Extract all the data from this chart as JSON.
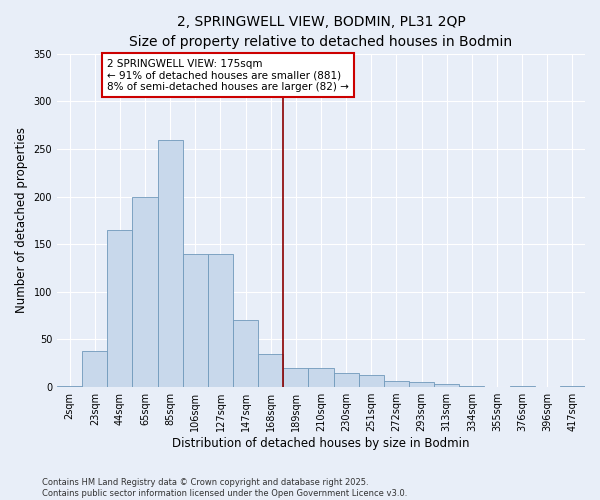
{
  "title": "2, SPRINGWELL VIEW, BODMIN, PL31 2QP",
  "subtitle": "Size of property relative to detached houses in Bodmin",
  "xlabel": "Distribution of detached houses by size in Bodmin",
  "ylabel": "Number of detached properties",
  "bar_labels": [
    "2sqm",
    "23sqm",
    "44sqm",
    "65sqm",
    "85sqm",
    "106sqm",
    "127sqm",
    "147sqm",
    "168sqm",
    "189sqm",
    "210sqm",
    "230sqm",
    "251sqm",
    "272sqm",
    "293sqm",
    "313sqm",
    "334sqm",
    "355sqm",
    "376sqm",
    "396sqm",
    "417sqm"
  ],
  "bar_values": [
    1,
    38,
    165,
    200,
    260,
    140,
    140,
    70,
    35,
    20,
    20,
    15,
    13,
    6,
    5,
    3,
    1,
    0,
    1,
    0,
    1
  ],
  "bar_color": "#c8d8eb",
  "bar_edge_color": "#7099bb",
  "vline_color": "#8b0000",
  "annotation_text": "2 SPRINGWELL VIEW: 175sqm\n← 91% of detached houses are smaller (881)\n8% of semi-detached houses are larger (82) →",
  "annotation_box_facecolor": "#ffffff",
  "annotation_box_edgecolor": "#cc0000",
  "ylim": [
    0,
    350
  ],
  "yticks": [
    0,
    50,
    100,
    150,
    200,
    250,
    300,
    350
  ],
  "background_color": "#e8eef8",
  "grid_color": "#ffffff",
  "footer_text": "Contains HM Land Registry data © Crown copyright and database right 2025.\nContains public sector information licensed under the Open Government Licence v3.0.",
  "title_fontsize": 10,
  "subtitle_fontsize": 9.5,
  "axis_label_fontsize": 8.5,
  "tick_fontsize": 7,
  "annotation_fontsize": 7.5,
  "footer_fontsize": 6
}
